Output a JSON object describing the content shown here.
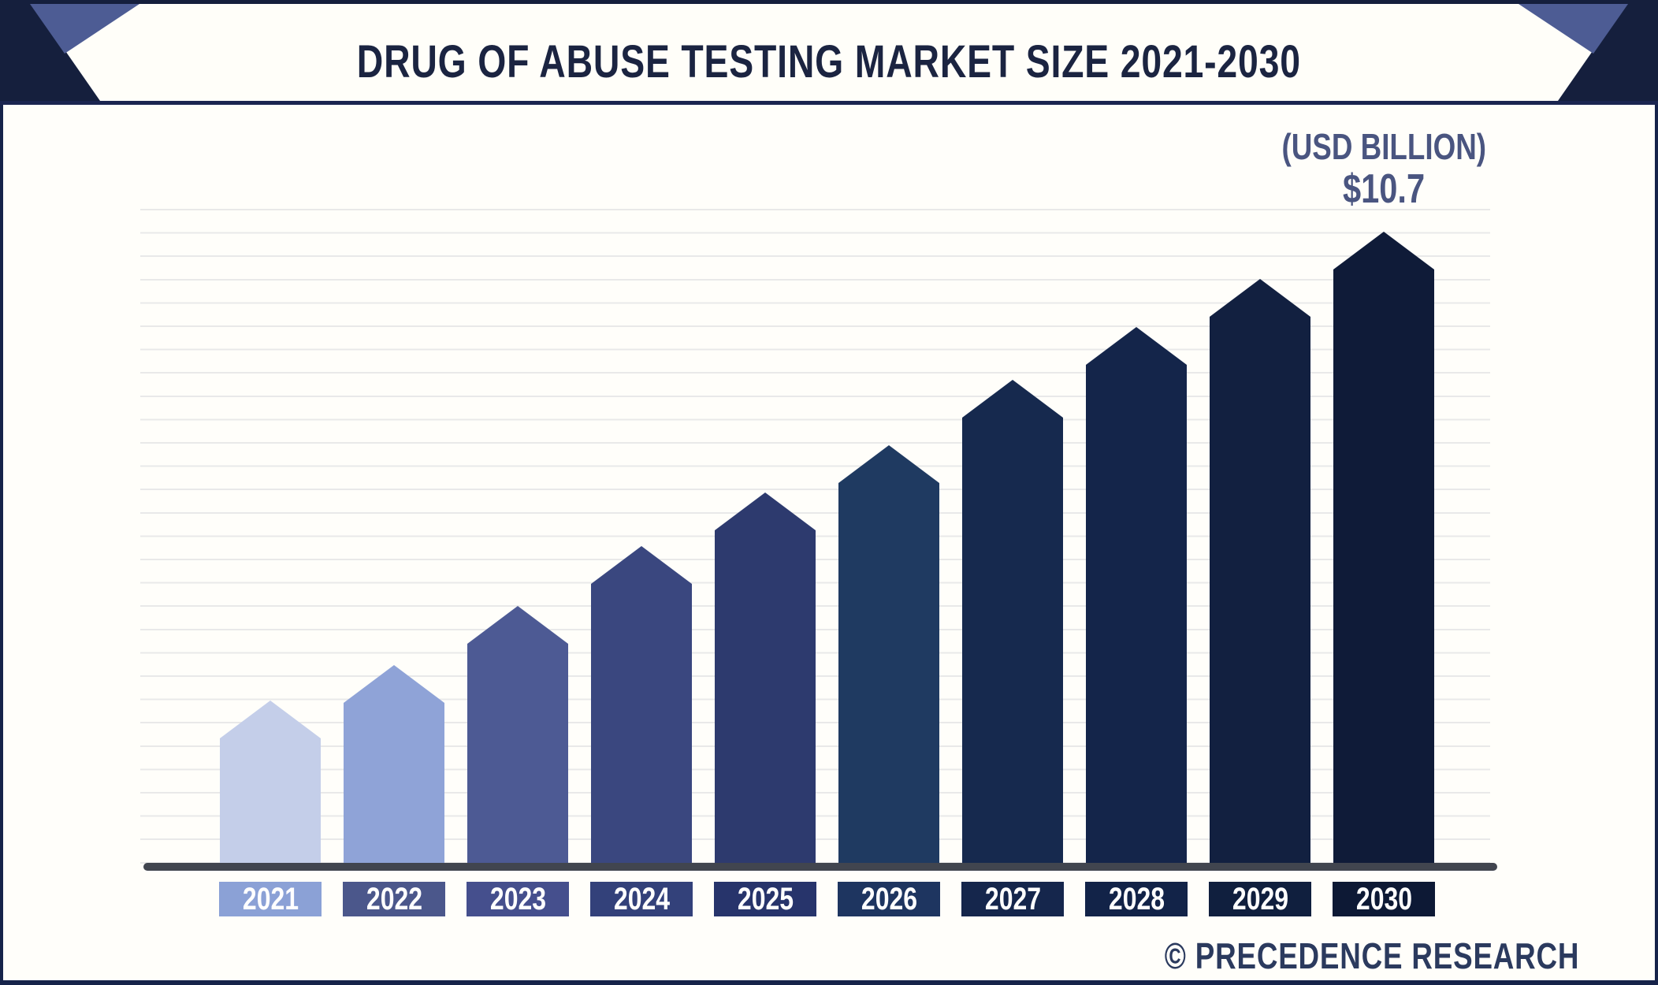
{
  "header": {
    "title": "DRUG OF ABUSE TESTING MARKET SIZE 2021-2030"
  },
  "annotation": {
    "unit_label": "(USD BILLION)",
    "value_label": "$10.7"
  },
  "footer": {
    "watermark": "© PRECEDENCE RESEARCH"
  },
  "chart_data": {
    "type": "bar",
    "title": "Drug of Abuse Testing Market Size 2021-2030",
    "unit": "USD Billion",
    "categories": [
      "2021",
      "2022",
      "2023",
      "2024",
      "2025",
      "2026",
      "2027",
      "2028",
      "2029",
      "2030"
    ],
    "values": [
      2.8,
      3.4,
      4.4,
      5.4,
      6.3,
      7.1,
      8.2,
      9.1,
      9.9,
      10.7
    ],
    "labeled_points": [
      {
        "category": "2030",
        "label": "$10.7"
      }
    ],
    "value_axis_visible": false,
    "category_axis_visible": true,
    "gridlines": true,
    "legend": "none",
    "bar_shape": "pentagon-pointed-top",
    "bar_colors": [
      "#c4cee9",
      "#8fa3d7",
      "#4d5a94",
      "#3a477f",
      "#2d3a6e",
      "#1f3a61",
      "#16294e",
      "#14254a",
      "#122040",
      "#0f1b38"
    ],
    "label_box_colors": [
      "#8ba1d6",
      "#4b578b",
      "#454f8d",
      "#33417a",
      "#27346b",
      "#1e3560",
      "#15264c",
      "#122348",
      "#101f3e",
      "#0d1935"
    ]
  },
  "colors": {
    "accent_navy": "#151f3d",
    "accent_slate": "#4d5c94",
    "header_border": "#1b2550",
    "panel_border": "#16234a",
    "panel_background": "#fffefa",
    "axis_line": "#41454f",
    "gridline": "#e9e9e9",
    "title_text": "#1b2441",
    "annotation_text": "#4a5580",
    "watermark_text": "#2b3a5e",
    "year_text": "#ffffff"
  }
}
